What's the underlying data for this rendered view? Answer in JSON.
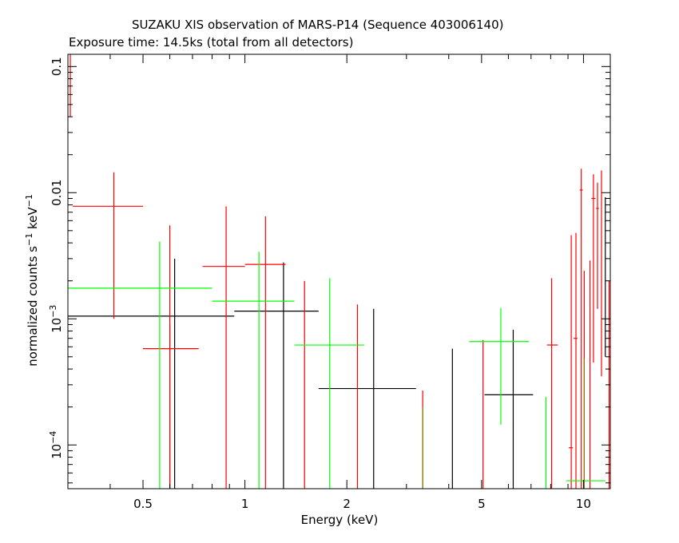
{
  "header": {
    "title": "SUZAKU XIS observation of MARS-P14 (Sequence 403006140)",
    "subtitle": "Exposure time: 14.5ks (total from all detectors)"
  },
  "chart_data": {
    "type": "scatter",
    "title": "SUZAKU XIS observation of MARS-P14 (Sequence 403006140)",
    "subtitle": "Exposure time: 14.5ks (total from all detectors)",
    "xlabel": "Energy (keV)",
    "ylabel": "normalized counts s^-1 keV^-1",
    "x_scale": "log",
    "y_scale": "log",
    "xlim": [
      0.3,
      12
    ],
    "ylim": [
      4.5e-05,
      0.125
    ],
    "x_ticks": [
      {
        "value": 0.5,
        "label": "0.5"
      },
      {
        "value": 1,
        "label": "1"
      },
      {
        "value": 2,
        "label": "2"
      },
      {
        "value": 5,
        "label": "5"
      },
      {
        "value": 10,
        "label": "10"
      }
    ],
    "y_ticks": [
      {
        "value": 0.0001,
        "label": "10",
        "exp": "−4"
      },
      {
        "value": 0.001,
        "label": "10",
        "exp": "−3"
      },
      {
        "value": 0.01,
        "label": "0.01"
      },
      {
        "value": 0.1,
        "label": "0.1"
      }
    ],
    "colors": {
      "black": "#000000",
      "red": "#ff0000",
      "green": "#00ff00",
      "olive": "#808000"
    },
    "series": [
      {
        "color": "#000000",
        "points": [
          {
            "x": 0.6,
            "xlo": 0.3,
            "xhi": 0.93,
            "y": 0.00105,
            "ylo": 4.5e-05,
            "yhi": 0.0009
          },
          {
            "x": 0.62,
            "xlo": 0.62,
            "xhi": 0.62,
            "y": 0.003,
            "ylo": 4.5e-05,
            "yhi": 0.003
          },
          {
            "x": 1.3,
            "xlo": 0.93,
            "xhi": 1.65,
            "y": 0.00115,
            "ylo": 4.5e-05,
            "yhi": 0.0028
          },
          {
            "x": 2.4,
            "xlo": 1.65,
            "xhi": 3.2,
            "y": 0.00028,
            "ylo": 4.5e-05,
            "yhi": 0.0012
          },
          {
            "x": 4.1,
            "xlo": 4.1,
            "xhi": 4.1,
            "y": 0.00058,
            "ylo": 4.5e-05,
            "yhi": 0.00058
          },
          {
            "x": 6.2,
            "xlo": 5.1,
            "xhi": 7.1,
            "y": 0.00025,
            "ylo": 4.5e-05,
            "yhi": 0.00082
          },
          {
            "x": 11.6,
            "xlo": 11.6,
            "xhi": 11.6,
            "y": 0.0092,
            "ylo": 0.0005,
            "yhi": 0.0092
          }
        ]
      },
      {
        "color": "#ff0000",
        "points": [
          {
            "x": 0.305,
            "xlo": 0.305,
            "xhi": 0.305,
            "y": 0.09,
            "ylo": 0.04,
            "yhi": 0.125
          },
          {
            "x": 0.41,
            "xlo": 0.31,
            "xhi": 0.5,
            "y": 0.0078,
            "ylo": 0.001,
            "yhi": 0.0145
          },
          {
            "x": 0.6,
            "xlo": 0.5,
            "xhi": 0.73,
            "y": 0.00058,
            "ylo": 4.5e-05,
            "yhi": 0.0055
          },
          {
            "x": 0.88,
            "xlo": 0.75,
            "xhi": 1.0,
            "y": 0.0026,
            "ylo": 4.5e-05,
            "yhi": 0.0078
          },
          {
            "x": 1.15,
            "xlo": 1.0,
            "xhi": 1.32,
            "y": 0.0027,
            "ylo": 4.5e-05,
            "yhi": 0.0065
          },
          {
            "x": 1.5,
            "xlo": 1.5,
            "xhi": 1.5,
            "y": 0.002,
            "ylo": 4.5e-05,
            "yhi": 0.002
          },
          {
            "x": 2.15,
            "xlo": 2.15,
            "xhi": 2.15,
            "y": 0.0013,
            "ylo": 4.5e-05,
            "yhi": 0.0013
          },
          {
            "x": 3.35,
            "xlo": 3.35,
            "xhi": 3.35,
            "y": 0.00027,
            "ylo": 4.5e-05,
            "yhi": 0.00027
          },
          {
            "x": 5.05,
            "xlo": 5.05,
            "xhi": 5.05,
            "y": 0.00068,
            "ylo": 4.5e-05,
            "yhi": 0.00068
          },
          {
            "x": 8.05,
            "xlo": 7.8,
            "xhi": 8.4,
            "y": 0.00062,
            "ylo": 4.5e-05,
            "yhi": 0.0021
          },
          {
            "x": 9.2,
            "xlo": 9.05,
            "xhi": 9.3,
            "y": 9.5e-05,
            "ylo": 4.5e-05,
            "yhi": 0.0046
          },
          {
            "x": 9.5,
            "xlo": 9.35,
            "xhi": 9.6,
            "y": 0.0007,
            "ylo": 4.5e-05,
            "yhi": 0.0048
          },
          {
            "x": 9.85,
            "xlo": 9.75,
            "xhi": 9.95,
            "y": 0.0105,
            "ylo": 4.5e-05,
            "yhi": 0.0155
          },
          {
            "x": 10.05,
            "xlo": 10.05,
            "xhi": 10.05,
            "y": 0.0024,
            "ylo": 4.5e-05,
            "yhi": 0.0024
          },
          {
            "x": 10.45,
            "xlo": 10.45,
            "xhi": 10.45,
            "y": 0.0029,
            "ylo": 4.5e-05,
            "yhi": 0.0029
          },
          {
            "x": 10.7,
            "xlo": 10.55,
            "xhi": 10.85,
            "y": 0.009,
            "ylo": 0.00045,
            "yhi": 0.014
          },
          {
            "x": 11.0,
            "xlo": 10.9,
            "xhi": 11.1,
            "y": 0.0075,
            "ylo": 0.0012,
            "yhi": 0.012
          },
          {
            "x": 11.3,
            "xlo": 11.3,
            "xhi": 11.3,
            "y": 0.0052,
            "ylo": 0.00035,
            "yhi": 0.015
          },
          {
            "x": 11.9,
            "xlo": 11.9,
            "xhi": 11.9,
            "y": 0.002,
            "ylo": 4.5e-05,
            "yhi": 0.002
          }
        ]
      },
      {
        "color": "#00ff00",
        "points": [
          {
            "x": 0.56,
            "xlo": 0.3,
            "xhi": 0.8,
            "y": 0.00175,
            "ylo": 4.5e-05,
            "yhi": 0.0041
          },
          {
            "x": 1.1,
            "xlo": 0.8,
            "xhi": 1.4,
            "y": 0.00138,
            "ylo": 4.5e-05,
            "yhi": 0.0034
          },
          {
            "x": 1.78,
            "xlo": 1.4,
            "xhi": 2.25,
            "y": 0.00062,
            "ylo": 4.5e-05,
            "yhi": 0.0021
          },
          {
            "x": 5.7,
            "xlo": 4.6,
            "xhi": 6.9,
            "y": 0.00066,
            "ylo": 0.000145,
            "yhi": 0.00122
          },
          {
            "x": 7.75,
            "xlo": 7.75,
            "xhi": 7.75,
            "y": 0.00024,
            "ylo": 4.5e-05,
            "yhi": 0.00024
          },
          {
            "x": 10.0,
            "xlo": 8.9,
            "xhi": 11.6,
            "y": 5.2e-05,
            "ylo": 4.5e-05,
            "yhi": 5.2e-05
          }
        ]
      },
      {
        "color": "#808000",
        "points": [
          {
            "x": 3.35,
            "xlo": 3.35,
            "xhi": 3.35,
            "y": 0.0002,
            "ylo": 4.5e-05,
            "yhi": 0.0002
          },
          {
            "x": 10.05,
            "xlo": 10.05,
            "xhi": 10.05,
            "y": 0.00048,
            "ylo": 4.5e-05,
            "yhi": 0.00048
          }
        ]
      }
    ]
  }
}
